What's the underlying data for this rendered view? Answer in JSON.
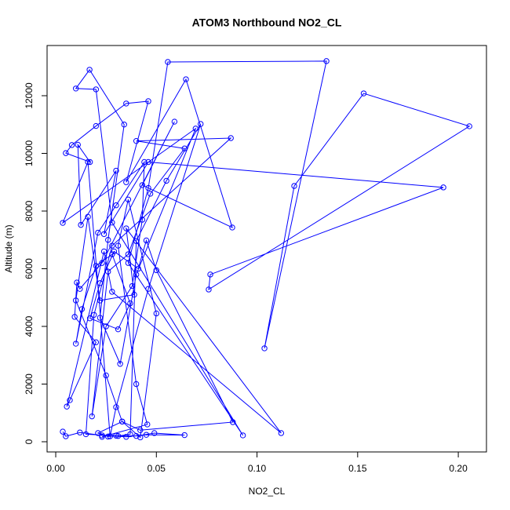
{
  "chart_data": {
    "type": "line",
    "title": "ATOM3 Northbound NO2_CL",
    "x_label": "NO2_CL",
    "y_label": "Altitude (m)",
    "color": "#0000ff",
    "markers": true,
    "x": [
      0.0035,
      0.005,
      0.012,
      0.023,
      0.035,
      0.045,
      0.064,
      0.049,
      0.04,
      0.03,
      0.026,
      0.021,
      0.033,
      0.042,
      0.088,
      0.05,
      0.045,
      0.041,
      0.029,
      0.022,
      0.017,
      0.031,
      0.037,
      0.028,
      0.02,
      0.013,
      0.01,
      0.021,
      0.03,
      0.044,
      0.043,
      0.038,
      0.025,
      0.018,
      0.026,
      0.036,
      0.047,
      0.064,
      0.04,
      0.087,
      0.028,
      0.019,
      0.015,
      0.031,
      0.037,
      0.04,
      0.055,
      0.072,
      0.046,
      0.03,
      0.027,
      0.016,
      0.0035,
      0.0695,
      0.04,
      0.032,
      0.022,
      0.026,
      0.034,
      0.0168,
      0.01,
      0.02,
      0.028,
      0.093,
      0.036,
      0.046,
      0.0557,
      0.1345,
      0.1037,
      0.1185,
      0.153,
      0.2055,
      0.076,
      0.0768,
      0.1926,
      0.046,
      0.024,
      0.03,
      0.0125,
      0.011,
      0.017,
      0.005,
      0.008,
      0.02,
      0.035,
      0.046,
      0.035,
      0.0647,
      0.0877,
      0.043,
      0.059,
      0.023,
      0.012,
      0.0105,
      0.0094,
      0.02,
      0.007,
      0.0055,
      0.024,
      0.028,
      0.112,
      0.035,
      0.039,
      0.022,
      0.016,
      0.01,
      0.025,
      0.033,
      0.042,
      0.05,
      0.036,
      0.031,
      0.04,
      0.0455,
      0.023
    ],
    "values": [
      350,
      190,
      320,
      220,
      170,
      240,
      230,
      300,
      200,
      210,
      180,
      300,
      700,
      400,
      680,
      5950,
      6980,
      6000,
      6600,
      5500,
      4280,
      3900,
      4800,
      6500,
      6100,
      4600,
      3400,
      7250,
      8200,
      9700,
      7700,
      5400,
      4000,
      880,
      5900,
      6500,
      8600,
      10170,
      10430,
      10530,
      6800,
      4400,
      260,
      200,
      260,
      6960,
      9050,
      11020,
      5300,
      1200,
      190,
      9700,
      7590,
      10860,
      5800,
      2700,
      4300,
      7000,
      11000,
      12900,
      12250,
      12220,
      7600,
      220,
      6200,
      8800,
      13170,
      13200,
      3240,
      8870,
      12080,
      10940,
      5280,
      5800,
      8820,
      9700,
      7200,
      9400,
      7520,
      10300,
      9700,
      10010,
      10290,
      10950,
      11730,
      11810,
      9000,
      12570,
      7430,
      8900,
      11100,
      6200,
      5300,
      5520,
      4330,
      3450,
      1440,
      1220,
      6600,
      5200,
      300,
      7400,
      5100,
      4900,
      7800,
      4900,
      2300,
      700,
      150,
      4450,
      8400,
      6800,
      2000,
      600,
      170
    ],
    "xlim": [
      -0.0043,
      0.214
    ],
    "ylim": [
      -354,
      13741
    ],
    "xticks": [
      {
        "value": 0,
        "label": "0.00"
      },
      {
        "value": 0.05,
        "label": "0.05"
      },
      {
        "value": 0.1,
        "label": "0.10"
      },
      {
        "value": 0.15,
        "label": "0.15"
      },
      {
        "value": 0.2,
        "label": "0.20"
      }
    ],
    "yticks": [
      0,
      2000,
      4000,
      6000,
      8000,
      10000,
      12000
    ]
  }
}
